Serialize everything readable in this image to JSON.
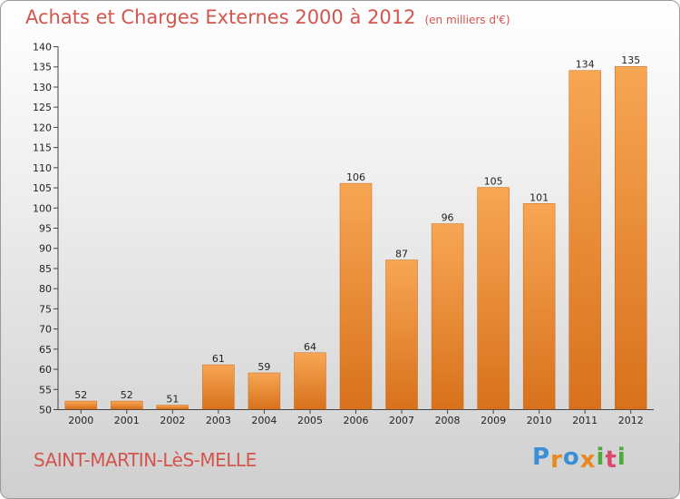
{
  "title": {
    "main": "Achats et Charges Externes 2000 à 2012",
    "unit": "(en milliers d'€)"
  },
  "city": "SAINT-MARTIN-LèS-MELLE",
  "brand": {
    "letters": [
      "P",
      "r",
      "o",
      "x",
      "i",
      "t",
      "i"
    ],
    "colors": [
      "#3a8fd6",
      "#e8891e",
      "#3a8fd6",
      "#e8891e",
      "#4caa3a",
      "#d84a6e",
      "#4caa3a"
    ]
  },
  "colors": {
    "bar_light": "#f7a654",
    "bar_dark": "#d8711c",
    "title": "#d2554e"
  },
  "chart_data": {
    "type": "bar",
    "categories": [
      "2000",
      "2001",
      "2002",
      "2003",
      "2004",
      "2005",
      "2006",
      "2007",
      "2008",
      "2009",
      "2010",
      "2011",
      "2012"
    ],
    "values": [
      52,
      52,
      51,
      61,
      59,
      64,
      106,
      87,
      96,
      105,
      101,
      134,
      135
    ],
    "ylim": [
      50,
      140
    ],
    "yticks": [
      50,
      55,
      60,
      65,
      70,
      75,
      80,
      85,
      90,
      95,
      100,
      105,
      110,
      115,
      120,
      125,
      130,
      135,
      140
    ],
    "grid": false,
    "legend": "none"
  }
}
